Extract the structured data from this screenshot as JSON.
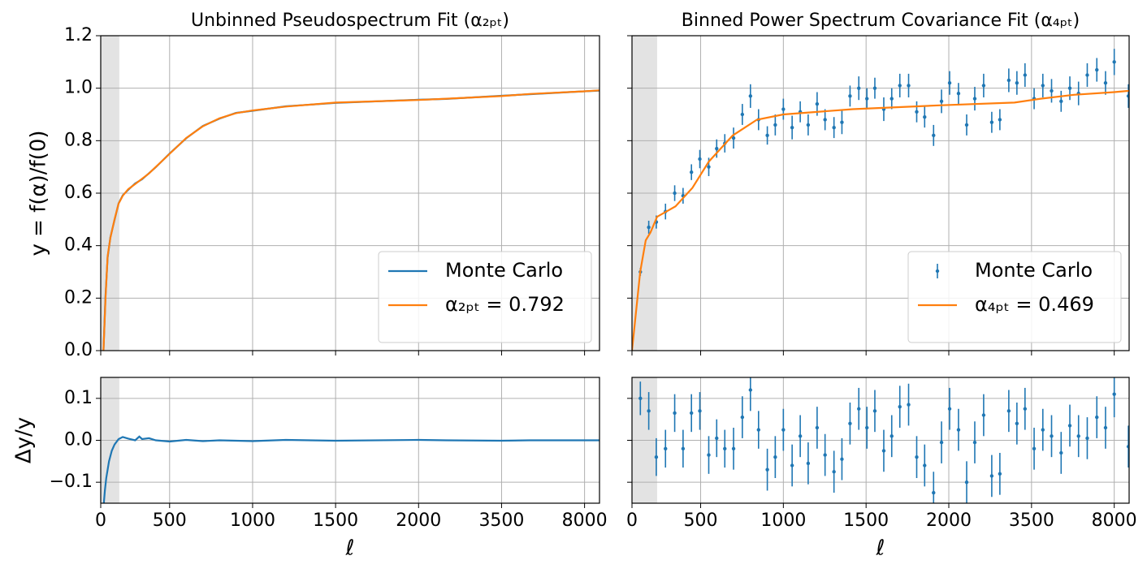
{
  "chart_data": [
    {
      "type": "line",
      "title": "Unbinned Pseudospectrum Fit (α₂ₚₜ)",
      "ylabel": "y = f(α)/f(0)",
      "x": [
        20,
        35,
        50,
        70,
        100,
        130,
        160,
        200,
        250,
        300,
        350,
        400,
        500,
        600,
        700,
        800,
        900,
        1000,
        1200,
        1500,
        2000,
        2500,
        3500,
        5000,
        8000,
        9000
      ],
      "series": [
        {
          "name": "Monte Carlo",
          "color": "#1f77b4",
          "values": [
            0.002,
            0.21,
            0.355,
            0.432,
            0.498,
            0.561,
            0.592,
            0.613,
            0.637,
            0.653,
            0.676,
            0.699,
            0.751,
            0.809,
            0.856,
            0.884,
            0.906,
            0.914,
            0.931,
            0.944,
            0.956,
            0.959,
            0.971,
            0.977,
            0.988,
            0.991
          ]
        },
        {
          "name": "α₂ₚₜ = 0.792",
          "color": "#ff7f0e",
          "values": [
            0,
            0.2,
            0.36,
            0.43,
            0.5,
            0.56,
            0.59,
            0.615,
            0.635,
            0.655,
            0.675,
            0.7,
            0.75,
            0.81,
            0.855,
            0.885,
            0.905,
            0.915,
            0.93,
            0.945,
            0.955,
            0.96,
            0.97,
            0.978,
            0.988,
            0.992
          ]
        }
      ],
      "xlim": [
        0,
        9000
      ],
      "xticks": [
        0,
        500,
        1000,
        1500,
        2000,
        3500,
        8000
      ],
      "ylim": [
        0,
        1.2
      ],
      "yticks": [
        {
          "value": 0,
          "label": "0.0"
        },
        {
          "value": 0.2,
          "label": "0.2"
        },
        {
          "value": 0.4,
          "label": "0.4"
        },
        {
          "value": 0.6,
          "label": "0.6"
        },
        {
          "value": 0.8,
          "label": "0.8"
        },
        {
          "value": 1.0,
          "label": "1.0"
        },
        {
          "value": 1.2,
          "label": "1.2"
        }
      ],
      "grid": true,
      "legend": "lower right",
      "shaded_span": [
        0,
        135
      ],
      "sharex": true
    },
    {
      "type": "errorbar",
      "title": "Binned Power Spectrum Covariance Fit (α₄ₚₜ)",
      "series": [
        {
          "name": "Monte Carlo",
          "style": "errorbar",
          "color": "#1f77b4",
          "x": [
            61,
            122,
            177,
            244,
            311,
            372,
            433,
            494,
            549,
            597,
            646,
            699,
            752,
            801,
            850,
            903,
            951,
            1000,
            1053,
            1102,
            1150,
            1204,
            1252,
            1306,
            1354,
            1403,
            1456,
            1505,
            1553,
            1607,
            1655,
            1704,
            1757,
            1806,
            1854,
            1908,
            1956,
            2015,
            2176,
            2324,
            2471,
            2632,
            2779,
            2926,
            3088,
            3235,
            3382,
            3642,
            4116,
            4590,
            5111,
            5585,
            6058,
            6532,
            7053,
            7526,
            8000,
            8950
          ],
          "values": [
            0.3,
            0.47,
            0.49,
            0.53,
            0.6,
            0.59,
            0.68,
            0.73,
            0.7,
            0.77,
            0.79,
            0.81,
            0.9,
            0.97,
            0.88,
            0.82,
            0.86,
            0.92,
            0.85,
            0.91,
            0.86,
            0.94,
            0.88,
            0.85,
            0.87,
            0.97,
            1.0,
            0.96,
            1.0,
            0.92,
            0.96,
            1.01,
            1.01,
            0.91,
            0.89,
            0.82,
            0.95,
            1.02,
            0.98,
            0.86,
            0.96,
            1.01,
            0.87,
            0.88,
            1.03,
            1.02,
            1.05,
            0.96,
            1.01,
            0.99,
            0.95,
            1.0,
            0.98,
            1.05,
            1.07,
            1.02,
            1.1,
            0.97
          ],
          "errors": [
            0.015,
            0.025,
            0.025,
            0.03,
            0.03,
            0.03,
            0.03,
            0.035,
            0.035,
            0.035,
            0.035,
            0.04,
            0.04,
            0.045,
            0.04,
            0.035,
            0.04,
            0.04,
            0.045,
            0.04,
            0.04,
            0.045,
            0.04,
            0.04,
            0.045,
            0.04,
            0.045,
            0.04,
            0.04,
            0.045,
            0.04,
            0.045,
            0.045,
            0.04,
            0.04,
            0.04,
            0.045,
            0.045,
            0.04,
            0.04,
            0.045,
            0.045,
            0.04,
            0.04,
            0.045,
            0.045,
            0.045,
            0.04,
            0.045,
            0.045,
            0.04,
            0.045,
            0.045,
            0.045,
            0.045,
            0.045,
            0.05,
            0.045
          ]
        },
        {
          "name": "α₄ₚₜ = 0.469",
          "style": "line",
          "color": "#ff7f0e",
          "x": [
            0,
            60,
            100,
            134,
            183,
            317,
            440,
            549,
            694,
            840,
            1000,
            1420,
            1956,
            3190,
            4000,
            5800,
            8000,
            9000
          ],
          "values": [
            0,
            0.3,
            0.42,
            0.45,
            0.51,
            0.55,
            0.62,
            0.72,
            0.82,
            0.88,
            0.9,
            0.92,
            0.935,
            0.945,
            0.96,
            0.975,
            0.985,
            0.99
          ]
        }
      ],
      "xlim": [
        0,
        9000
      ],
      "xticks": [
        0,
        500,
        1000,
        1500,
        2000,
        3500,
        8000
      ],
      "ylim": [
        0,
        1.2
      ],
      "yticks": [
        0,
        0.2,
        0.4,
        0.6,
        0.8,
        1.0,
        1.2
      ],
      "grid": true,
      "legend": "lower right",
      "shaded_span": [
        0,
        183
      ],
      "sharex": true,
      "sharey": true
    },
    {
      "type": "line",
      "ylabel": "Δy/y",
      "xlabel": "ℓ",
      "x": [
        20,
        30,
        40,
        50,
        60,
        80,
        100,
        130,
        160,
        200,
        250,
        280,
        300,
        350,
        400,
        500,
        600,
        700,
        800,
        1000,
        1200,
        1500,
        2000,
        2500,
        3500,
        5000,
        8000,
        9000
      ],
      "series": [
        {
          "color": "#1f77b4",
          "values": [
            -0.16,
            -0.12,
            -0.09,
            -0.07,
            -0.05,
            -0.025,
            -0.01,
            0.003,
            0.008,
            0.004,
            0.0,
            0.009,
            0.003,
            0.005,
            0.0,
            -0.003,
            0.001,
            -0.002,
            0.0,
            -0.002,
            0.001,
            -0.001,
            0.001,
            0.0,
            -0.001,
            0.0,
            0.0,
            0.0
          ]
        }
      ],
      "xlim": [
        0,
        9000
      ],
      "xticks": [
        0,
        500,
        1000,
        1500,
        2000,
        3500,
        8000
      ],
      "ylim": [
        -0.15,
        0.15
      ],
      "yticks": [
        {
          "value": -0.1,
          "label": "−0.1"
        },
        {
          "value": 0,
          "label": "0.0"
        },
        {
          "value": 0.1,
          "label": "0.1"
        }
      ],
      "grid": true,
      "shaded_span": [
        0,
        135
      ]
    },
    {
      "type": "errorbar",
      "xlabel": "ℓ",
      "series": [
        {
          "style": "errorbar",
          "color": "#1f77b4",
          "x": [
            61,
            122,
            177,
            244,
            311,
            372,
            433,
            494,
            549,
            597,
            646,
            699,
            752,
            801,
            850,
            903,
            951,
            1000,
            1053,
            1102,
            1150,
            1204,
            1252,
            1306,
            1354,
            1403,
            1456,
            1505,
            1553,
            1607,
            1655,
            1704,
            1757,
            1806,
            1854,
            1908,
            1956,
            2015,
            2176,
            2324,
            2471,
            2632,
            2779,
            2926,
            3088,
            3235,
            3382,
            3642,
            4116,
            4590,
            5111,
            5585,
            6058,
            6532,
            7053,
            7526,
            8000,
            8950
          ],
          "values": [
            0.1,
            0.07,
            -0.04,
            -0.02,
            0.065,
            -0.02,
            0.065,
            0.07,
            -0.035,
            0.005,
            -0.02,
            -0.02,
            0.055,
            0.12,
            0.025,
            -0.07,
            -0.04,
            0.025,
            -0.06,
            0.01,
            -0.055,
            0.03,
            -0.035,
            -0.075,
            -0.045,
            0.04,
            0.075,
            0.03,
            0.07,
            -0.025,
            0.01,
            0.08,
            0.085,
            -0.04,
            -0.06,
            -0.125,
            -0.005,
            0.075,
            0.025,
            -0.1,
            -0.005,
            0.06,
            -0.085,
            -0.08,
            0.07,
            0.04,
            0.075,
            -0.02,
            0.025,
            0.01,
            -0.03,
            0.035,
            0.01,
            0.005,
            0.055,
            0.03,
            0.11,
            -0.015
          ],
          "errors": [
            0.04,
            0.045,
            0.045,
            0.045,
            0.045,
            0.045,
            0.045,
            0.045,
            0.045,
            0.045,
            0.045,
            0.05,
            0.05,
            0.05,
            0.045,
            0.05,
            0.05,
            0.05,
            0.05,
            0.05,
            0.05,
            0.05,
            0.05,
            0.05,
            0.05,
            0.05,
            0.05,
            0.05,
            0.05,
            0.05,
            0.05,
            0.05,
            0.05,
            0.05,
            0.05,
            0.05,
            0.05,
            0.05,
            0.05,
            0.05,
            0.05,
            0.05,
            0.05,
            0.05,
            0.05,
            0.05,
            0.05,
            0.05,
            0.05,
            0.05,
            0.05,
            0.05,
            0.05,
            0.05,
            0.05,
            0.05,
            0.055,
            0.05
          ]
        }
      ],
      "xlim": [
        0,
        9000
      ],
      "xticks": [
        0,
        500,
        1000,
        1500,
        2000,
        3500,
        8000
      ],
      "ylim": [
        -0.15,
        0.15
      ],
      "yticks": [
        -0.1,
        0,
        0.1
      ],
      "grid": true,
      "shaded_span": [
        0,
        183
      ],
      "sharey": true
    }
  ]
}
